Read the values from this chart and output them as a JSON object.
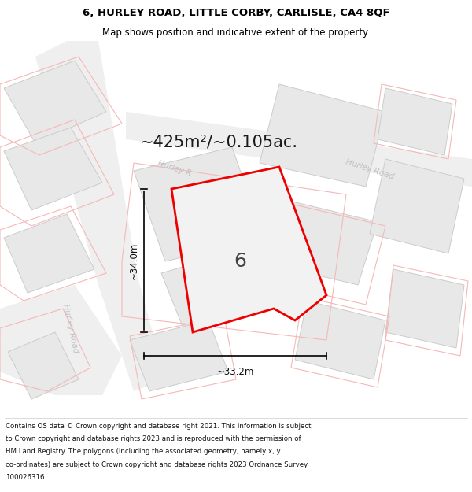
{
  "title_line1": "6, HURLEY ROAD, LITTLE CORBY, CARLISLE, CA4 8QF",
  "title_line2": "Map shows position and indicative extent of the property.",
  "area_label": "~425m²/~0.105ac.",
  "number_label": "6",
  "dim_height": "~34.0m",
  "dim_width": "~33.2m",
  "road_label_diag_left": "Hurley Road",
  "road_label_diag_upper": "Hurley R",
  "road_label_diag_right": "Hurley Road",
  "road_label_bottom_left": "Hurley Road",
  "footer_lines": [
    "Contains OS data © Crown copyright and database right 2021. This information is subject",
    "to Crown copyright and database rights 2023 and is reproduced with the permission of",
    "HM Land Registry. The polygons (including the associated geometry, namely x, y",
    "co-ordinates) are subject to Crown copyright and database rights 2023 Ordnance Survey",
    "100026316."
  ],
  "map_bg": "#f7f7f7",
  "building_fill": "#e8e8e8",
  "building_edge": "#cccccc",
  "road_fill": "#efefef",
  "red_color": "#ee0000",
  "faint_red": "#f5b8b8",
  "prop_fill": "#f2f2f2",
  "dim_color": "#111111",
  "road_text_color": "#c0c0c0",
  "title_color": "#000000",
  "footer_color": "#111111",
  "title_bold": true,
  "title_fontsize": 9.5,
  "subtitle_fontsize": 8.5,
  "area_fontsize": 15,
  "number_fontsize": 18,
  "dim_fontsize": 8.5,
  "road_fontsize": 7.5,
  "footer_fontsize": 6.2
}
